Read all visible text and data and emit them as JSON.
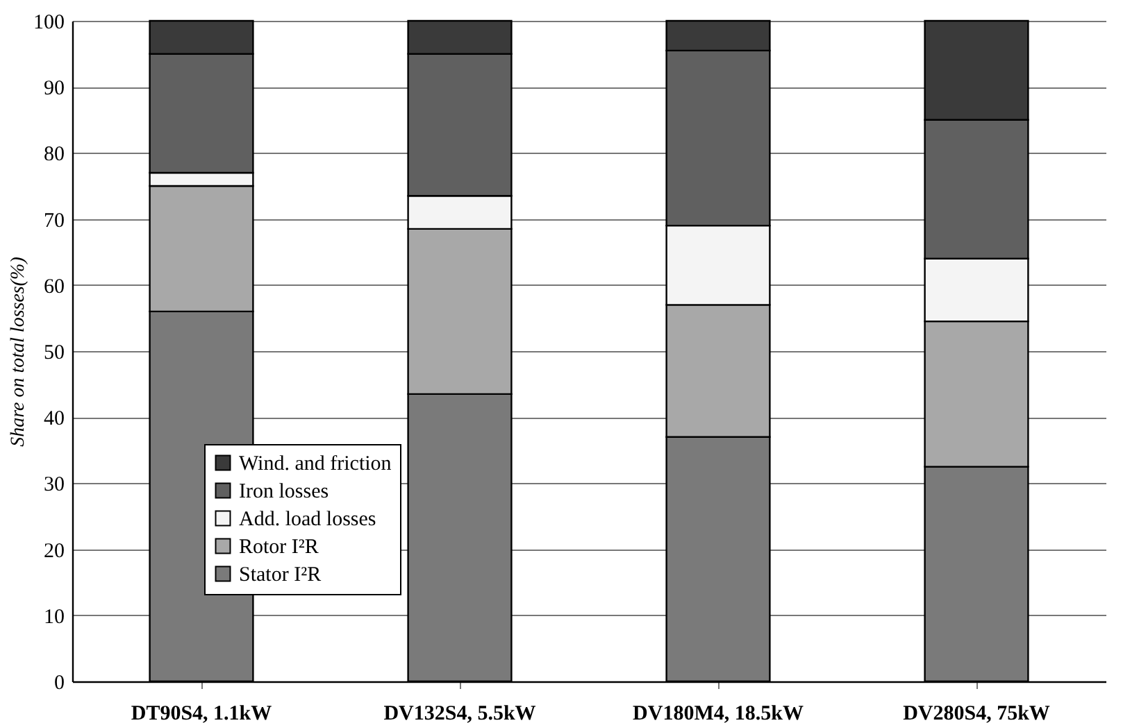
{
  "chart_data": {
    "type": "bar",
    "stacked": true,
    "ylabel": "Share on total losses(%)",
    "categories": [
      "DT90S4, 1.1kW",
      "DV132S4, 5.5kW",
      "DV180M4, 18.5kW",
      "DV280S4, 75kW"
    ],
    "series": [
      {
        "name": "Stator I²R",
        "color": "#7a7a7a",
        "values": [
          56,
          43.5,
          37,
          32.5
        ]
      },
      {
        "name": "Rotor I²R",
        "color": "#a8a8a8",
        "values": [
          19,
          25,
          20,
          22
        ]
      },
      {
        "name": "Add. load losses",
        "color": "#f4f4f4",
        "values": [
          2,
          5,
          12,
          9.5
        ]
      },
      {
        "name": "Iron losses",
        "color": "#606060",
        "values": [
          18,
          21.5,
          26.5,
          21
        ]
      },
      {
        "name": "Wind. and friction",
        "color": "#3a3a3a",
        "values": [
          5,
          5,
          4.5,
          15
        ]
      }
    ],
    "ylim": [
      0,
      100
    ],
    "yticks": [
      0,
      10,
      20,
      30,
      40,
      50,
      60,
      70,
      80,
      90,
      100
    ],
    "grid": "y",
    "legend": "bottom left"
  }
}
